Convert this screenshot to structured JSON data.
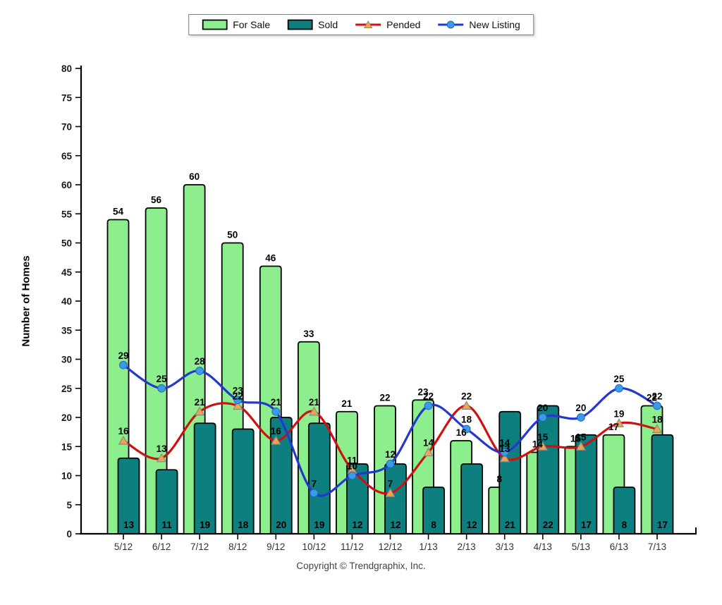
{
  "legend": {
    "position": "top-center"
  },
  "chart_data": {
    "type": "combo",
    "categories": [
      "5/12",
      "6/12",
      "7/12",
      "8/12",
      "9/12",
      "10/12",
      "11/12",
      "12/12",
      "1/13",
      "2/13",
      "3/13",
      "4/13",
      "5/13",
      "6/13",
      "7/13"
    ],
    "series": [
      {
        "name": "For Sale",
        "type": "bar",
        "color": "#8DEE8D",
        "border": "#000000",
        "values": [
          54,
          56,
          60,
          50,
          46,
          33,
          21,
          22,
          23,
          16,
          8,
          14,
          15,
          17,
          22
        ]
      },
      {
        "name": "Sold",
        "type": "bar",
        "color": "#0D7F7F",
        "border": "#000000",
        "values": [
          13,
          11,
          19,
          18,
          20,
          19,
          12,
          12,
          8,
          12,
          21,
          22,
          17,
          8,
          17
        ]
      },
      {
        "name": "Pended",
        "type": "line",
        "color": "#CC1111",
        "marker": "triangle",
        "marker_color": "#F2A44A",
        "marker_border": "#8a8a8a",
        "values": [
          16,
          13,
          21,
          22,
          16,
          21,
          11,
          7,
          14,
          22,
          13,
          15,
          15,
          19,
          18
        ]
      },
      {
        "name": "New Listing",
        "type": "line",
        "color": "#2238D0",
        "marker": "circle",
        "marker_color": "#3B9BE6",
        "marker_border": "#2166c4",
        "values": [
          29,
          25,
          28,
          23,
          21,
          7,
          10,
          12,
          22,
          18,
          14,
          20,
          20,
          25,
          22
        ]
      }
    ],
    "title": "",
    "xlabel": "",
    "ylabel": "Number of Homes",
    "ylim": [
      0,
      80
    ],
    "ytick_step": 5,
    "grid": false,
    "legend_position": "top",
    "value_labels": true,
    "axis_color": "#000000",
    "value_label_color": "#000000",
    "ytick_label_color": "#1a1a1a",
    "xtick_label_color": "#333333"
  },
  "footer": {
    "copyright": "Copyright © Trendgraphix, Inc."
  }
}
